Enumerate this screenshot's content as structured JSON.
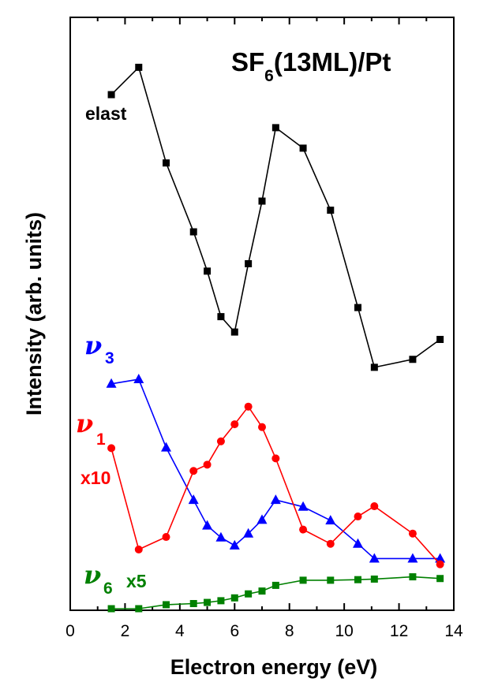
{
  "chart_data": {
    "type": "line",
    "title": {
      "main": "SF",
      "sub": "6",
      "rest": "(13ML)/Pt"
    },
    "xlabel": "Electron energy (eV)",
    "ylabel": "Intensity (arb. units)",
    "xlim": [
      0,
      14
    ],
    "ylim": [
      0,
      100
    ],
    "xticks": [
      0,
      2,
      4,
      6,
      8,
      10,
      12,
      14
    ],
    "xtick_labels": [
      "0",
      "2",
      "4",
      "6",
      "8",
      "10",
      "12",
      14
    ],
    "grid": false,
    "series": [
      {
        "label": "elast",
        "color": "#000000",
        "marker": "square",
        "x": [
          1.5,
          2.5,
          3.5,
          4.5,
          5.0,
          5.5,
          6.0,
          6.5,
          7.0,
          7.5,
          8.5,
          9.5,
          10.5,
          11.1,
          12.5,
          13.5
        ],
        "y": [
          90.3,
          95.1,
          78.3,
          66.2,
          59.3,
          51.3,
          48.6,
          60.6,
          71.6,
          84.5,
          80.9,
          70.0,
          52.9,
          42.4,
          43.8,
          47.3
        ]
      },
      {
        "label": "ν3",
        "label_symbol": "ν",
        "label_sub": "3",
        "color": "#0000ff",
        "marker": "triangle",
        "x": [
          1.5,
          2.5,
          3.5,
          4.5,
          5.0,
          5.5,
          6.0,
          6.5,
          7.0,
          7.5,
          8.5,
          9.5,
          10.5,
          11.1,
          12.5,
          13.5
        ],
        "y": [
          39.5,
          40.3,
          28.3,
          19.1,
          14.6,
          12.5,
          11.1,
          13.2,
          15.6,
          19.1,
          17.9,
          15.5,
          11.4,
          8.8,
          8.8,
          8.8
        ]
      },
      {
        "label": "ν1",
        "label_symbol": "ν",
        "label_sub": "1",
        "scale_note": "x10",
        "color": "#ff0000",
        "marker": "circle",
        "x": [
          1.5,
          2.5,
          3.5,
          4.5,
          5.0,
          5.5,
          6.0,
          6.5,
          7.0,
          7.5,
          8.5,
          9.5,
          10.5,
          11.1,
          12.5,
          13.5
        ],
        "y": [
          28.2,
          10.4,
          12.6,
          24.2,
          25.3,
          29.4,
          32.4,
          35.5,
          31.9,
          26.4,
          13.9,
          11.4,
          16.2,
          18.0,
          13.2,
          7.8
        ]
      },
      {
        "label": "ν6",
        "label_symbol": "ν",
        "label_sub": "6",
        "scale_note": "x5",
        "color": "#008000",
        "marker": "square",
        "x": [
          1.5,
          2.5,
          3.5,
          4.5,
          5.0,
          5.5,
          6.0,
          6.5,
          7.0,
          7.5,
          8.5,
          9.5,
          10.5,
          11.1,
          12.5,
          13.5
        ],
        "y": [
          0.0,
          0.0,
          0.7,
          0.9,
          1.1,
          1.4,
          1.9,
          2.6,
          3.1,
          4.1,
          5.0,
          5.0,
          5.1,
          5.2,
          5.6,
          5.3
        ]
      }
    ]
  }
}
